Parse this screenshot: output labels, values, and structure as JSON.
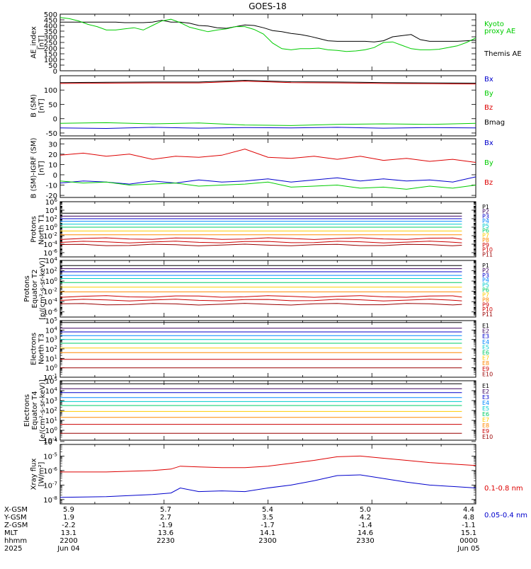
{
  "title": "GOES-18",
  "chart_data": [
    {
      "id": "ae",
      "type": "line",
      "ylabel": [
        "AE_index",
        "[nT]"
      ],
      "ylim": [
        0,
        500
      ],
      "yticks": [
        "0",
        "50",
        "100",
        "150",
        "200",
        "250",
        "300",
        "350",
        "400",
        "450",
        "500"
      ],
      "legend": [
        {
          "text": "Kyoto",
          "color": "#00cc00"
        },
        {
          "text": "proxy AE",
          "color": "#00cc00"
        },
        {
          "text": "Themis AE",
          "color": "#000000"
        }
      ],
      "series": [
        {
          "name": "Themis AE",
          "color": "#000000",
          "x": [
            0,
            20,
            40,
            60,
            80,
            100,
            120,
            140,
            160,
            180,
            200,
            220,
            240,
            260,
            280,
            300,
            320,
            340,
            360,
            380,
            400,
            420,
            440,
            460,
            480,
            500,
            520,
            540,
            560,
            580,
            600,
            620,
            640,
            660,
            680,
            700,
            720,
            740,
            760,
            780,
            800,
            820,
            840,
            860,
            880,
            900
          ],
          "y": [
            430,
            430,
            430,
            430,
            430,
            430,
            430,
            425,
            425,
            425,
            430,
            445,
            430,
            430,
            420,
            400,
            395,
            380,
            375,
            390,
            405,
            400,
            380,
            355,
            345,
            330,
            320,
            305,
            285,
            265,
            260,
            260,
            260,
            260,
            255,
            265,
            300,
            310,
            320,
            275,
            260,
            260,
            260,
            260,
            265,
            270
          ]
        },
        {
          "name": "Kyoto proxy AE",
          "color": "#00cc00",
          "x": [
            0,
            20,
            40,
            60,
            80,
            100,
            120,
            140,
            160,
            180,
            200,
            220,
            240,
            260,
            280,
            300,
            320,
            340,
            360,
            380,
            400,
            420,
            440,
            460,
            480,
            500,
            520,
            540,
            560,
            580,
            600,
            620,
            640,
            660,
            680,
            700,
            720,
            740,
            760,
            780,
            800,
            820,
            840,
            860,
            880,
            900
          ],
          "y": [
            470,
            460,
            440,
            410,
            390,
            360,
            360,
            370,
            380,
            360,
            400,
            440,
            455,
            425,
            385,
            365,
            345,
            360,
            370,
            390,
            390,
            365,
            325,
            245,
            195,
            185,
            195,
            195,
            200,
            185,
            180,
            170,
            175,
            185,
            205,
            250,
            255,
            225,
            195,
            185,
            185,
            190,
            205,
            220,
            250,
            290
          ]
        }
      ]
    },
    {
      "id": "bsm",
      "type": "line",
      "ylabel": [
        "B (SM)",
        "[nT]"
      ],
      "ylim": [
        -60,
        150
      ],
      "ytick_values": [
        -50,
        0,
        50,
        100
      ],
      "yticks": [
        "-50",
        "0",
        "50",
        "100"
      ],
      "legend": [
        {
          "text": "Bx",
          "color": "#0000cc"
        },
        {
          "text": "By",
          "color": "#00cc00"
        },
        {
          "text": "Bz",
          "color": "#dd0000"
        },
        {
          "text": "Bmag",
          "color": "#000000"
        }
      ],
      "series": [
        {
          "name": "Bx",
          "color": "#0000cc",
          "x": [
            0,
            100,
            200,
            300,
            400,
            500,
            600,
            700,
            800,
            900
          ],
          "y": [
            -32,
            -34,
            -30,
            -33,
            -31,
            -32,
            -30,
            -33,
            -31,
            -32
          ]
        },
        {
          "name": "By",
          "color": "#00cc00",
          "x": [
            0,
            100,
            200,
            300,
            400,
            500,
            600,
            700,
            800,
            900
          ],
          "y": [
            -16,
            -14,
            -18,
            -15,
            -22,
            -24,
            -20,
            -18,
            -20,
            -16
          ]
        },
        {
          "name": "Bmag",
          "color": "#000000",
          "x": [
            0,
            100,
            200,
            300,
            400,
            500,
            600,
            700,
            800,
            900
          ],
          "y": [
            126,
            127,
            128,
            128,
            134,
            129,
            128,
            126,
            125,
            124
          ]
        },
        {
          "name": "Bz",
          "color": "#dd0000",
          "x": [
            0,
            100,
            200,
            300,
            400,
            500,
            600,
            700,
            800,
            900
          ],
          "y": [
            123,
            124,
            125,
            125,
            131,
            126,
            125,
            123,
            122,
            121
          ]
        }
      ]
    },
    {
      "id": "bigrf",
      "type": "line",
      "ylabel": [
        "B (SM)-IGRF (SM)",
        "[nT]"
      ],
      "ylim": [
        -22,
        35
      ],
      "ytick_values": [
        -20,
        -10,
        0,
        10,
        20,
        30
      ],
      "yticks": [
        "-20",
        "-10",
        "0",
        "10",
        "20",
        "30"
      ],
      "legend": [
        {
          "text": "Bx",
          "color": "#0000cc"
        },
        {
          "text": "By",
          "color": "#00cc00"
        },
        {
          "text": "Bz",
          "color": "#dd0000"
        }
      ],
      "series": [
        {
          "name": "Bz",
          "color": "#dd0000",
          "x": [
            0,
            50,
            100,
            150,
            200,
            250,
            300,
            350,
            400,
            450,
            500,
            550,
            600,
            650,
            700,
            750,
            800,
            850,
            900
          ],
          "y": [
            19,
            21,
            18,
            20,
            15,
            18,
            17,
            19,
            25,
            17,
            16,
            18,
            15,
            18,
            14,
            16,
            13,
            15,
            12
          ]
        },
        {
          "name": "Bx",
          "color": "#0000cc",
          "x": [
            0,
            50,
            100,
            150,
            200,
            250,
            300,
            350,
            400,
            450,
            500,
            550,
            600,
            650,
            700,
            750,
            800,
            850,
            900
          ],
          "y": [
            -8,
            -6,
            -7,
            -9,
            -6,
            -8,
            -5,
            -7,
            -6,
            -4,
            -7,
            -5,
            -3,
            -6,
            -4,
            -6,
            -5,
            -7,
            -2
          ]
        },
        {
          "name": "By",
          "color": "#00cc00",
          "x": [
            0,
            50,
            100,
            150,
            200,
            250,
            300,
            350,
            400,
            450,
            500,
            550,
            600,
            650,
            700,
            750,
            800,
            850,
            900
          ],
          "y": [
            -6,
            -8,
            -7,
            -10,
            -9,
            -8,
            -11,
            -10,
            -9,
            -7,
            -12,
            -11,
            -10,
            -13,
            -12,
            -14,
            -11,
            -13,
            -10
          ]
        }
      ]
    },
    {
      "id": "pn",
      "type": "line",
      "log": true,
      "ylabel": [
        "Protons",
        "North T1"
      ],
      "ylim_exp": [
        -7,
        6
      ],
      "ytick_exp": [
        -6,
        -4,
        -2,
        0,
        2,
        4,
        6
      ],
      "channels": [
        {
          "label": "P1",
          "color": "#000000",
          "exp": 3.3
        },
        {
          "label": "P2",
          "color": "#3a005f",
          "exp": 2.6
        },
        {
          "label": "P3",
          "color": "#0000cc",
          "exp": 2.0
        },
        {
          "label": "P4",
          "color": "#0088ff",
          "exp": 1.4
        },
        {
          "label": "P5",
          "color": "#00cccc",
          "exp": 0.7
        },
        {
          "label": "P6",
          "color": "#00cc66",
          "exp": 0.0
        },
        {
          "label": "P7",
          "color": "#ffcc00",
          "exp": -0.9
        },
        {
          "label": "P8",
          "color": "#ff8800",
          "exp": -1.8
        },
        {
          "label": "P9",
          "color": "#cc0000",
          "exp": -2.7
        },
        {
          "label": "P10",
          "color": "#cc0000",
          "exp": -3.5
        },
        {
          "label": "P11",
          "color": "#990000",
          "exp": -4.2
        }
      ]
    },
    {
      "id": "pe",
      "type": "line",
      "log": true,
      "ylabel": [
        "Protons",
        "Equator T2",
        "[p/(cm²-s-sr-keV)]"
      ],
      "ylim_exp": [
        -7,
        4
      ],
      "ytick_exp": [
        -6,
        -4,
        -2,
        0,
        2,
        4
      ],
      "channels": [
        {
          "label": "P1",
          "color": "#000000",
          "exp": 3.0
        },
        {
          "label": "P2",
          "color": "#3a005f",
          "exp": 2.4
        },
        {
          "label": "P3",
          "color": "#0000cc",
          "exp": 1.8
        },
        {
          "label": "P4",
          "color": "#0088ff",
          "exp": 1.1
        },
        {
          "label": "P5",
          "color": "#00cccc",
          "exp": 0.5
        },
        {
          "label": "P6",
          "color": "#00cc66",
          "exp": -0.3
        },
        {
          "label": "P7",
          "color": "#ffcc00",
          "exp": -1.2
        },
        {
          "label": "P8",
          "color": "#ff8800",
          "exp": -2.1
        },
        {
          "label": "P9",
          "color": "#cc0000",
          "exp": -3.0
        },
        {
          "label": "P10",
          "color": "#cc0000",
          "exp": -3.7
        },
        {
          "label": "P11",
          "color": "#990000",
          "exp": -4.5
        }
      ]
    },
    {
      "id": "en",
      "type": "line",
      "log": true,
      "ylabel": [
        "Electrons",
        "North T3"
      ],
      "ylim_exp": [
        -1,
        5
      ],
      "ytick_exp": [
        -1,
        0,
        1,
        2,
        3,
        4,
        5
      ],
      "channels": [
        {
          "label": "E1",
          "color": "#000000",
          "exp": 4.8
        },
        {
          "label": "E2",
          "color": "#3a005f",
          "exp": 4.2
        },
        {
          "label": "E3",
          "color": "#0000cc",
          "exp": 3.8
        },
        {
          "label": "E4",
          "color": "#0088ff",
          "exp": 3.4
        },
        {
          "label": "E5",
          "color": "#00cccc",
          "exp": 3.0
        },
        {
          "label": "E6",
          "color": "#00cc66",
          "exp": 2.6
        },
        {
          "label": "E7",
          "color": "#ffcc00",
          "exp": 2.1
        },
        {
          "label": "E8",
          "color": "#ff8800",
          "exp": 1.6
        },
        {
          "label": "E9",
          "color": "#cc0000",
          "exp": 0.9
        },
        {
          "label": "E10",
          "color": "#990000",
          "exp": 0.0
        }
      ]
    },
    {
      "id": "ee",
      "type": "line",
      "log": true,
      "ylabel": [
        "Electrons",
        "Equator T4",
        "[e/(cm²-s-sr-keV)]"
      ],
      "ylim_exp": [
        -1,
        5
      ],
      "ytick_exp": [
        -1,
        0,
        1,
        2,
        3,
        4,
        5
      ],
      "channels": [
        {
          "label": "E1",
          "color": "#000000",
          "exp": 4.7
        },
        {
          "label": "E2",
          "color": "#3a005f",
          "exp": 4.2
        },
        {
          "label": "E3",
          "color": "#0000cc",
          "exp": 3.8
        },
        {
          "label": "E4",
          "color": "#0088ff",
          "exp": 3.3
        },
        {
          "label": "E5",
          "color": "#00cccc",
          "exp": 2.9
        },
        {
          "label": "E6",
          "color": "#00cc66",
          "exp": 2.5
        },
        {
          "label": "E7",
          "color": "#ffcc00",
          "exp": 1.9
        },
        {
          "label": "E8",
          "color": "#ff8800",
          "exp": 1.3
        },
        {
          "label": "E9",
          "color": "#cc0000",
          "exp": 0.6
        },
        {
          "label": "E10",
          "color": "#990000",
          "exp": -0.3
        }
      ]
    },
    {
      "id": "xray",
      "type": "line",
      "log": true,
      "ylabel": [
        "Xray flux",
        "[W/m²]"
      ],
      "ylim_exp": [
        -8.3,
        -4.2
      ],
      "ytick_exp": [
        -8,
        -7,
        -6,
        -5,
        -4
      ],
      "legend": [
        {
          "text": "0.1-0.8 nm",
          "color": "#dd0000"
        },
        {
          "text": "0.05-0.4 nm",
          "color": "#0000cc"
        }
      ],
      "series": [
        {
          "name": "0.1-0.8 nm",
          "color": "#dd0000",
          "x": [
            0,
            100,
            200,
            240,
            260,
            300,
            350,
            400,
            450,
            500,
            550,
            600,
            650,
            700,
            750,
            800,
            850,
            900
          ],
          "y": [
            -6.1,
            -6.1,
            -6.0,
            -5.9,
            -5.7,
            -5.75,
            -5.8,
            -5.8,
            -5.7,
            -5.5,
            -5.3,
            -5.05,
            -5.0,
            -5.15,
            -5.3,
            -5.45,
            -5.55,
            -5.65
          ]
        },
        {
          "name": "0.05-0.4 nm",
          "color": "#0000cc",
          "x": [
            0,
            100,
            200,
            240,
            260,
            300,
            350,
            400,
            450,
            500,
            550,
            600,
            650,
            700,
            750,
            800,
            850,
            900
          ],
          "y": [
            -7.85,
            -7.8,
            -7.65,
            -7.55,
            -7.2,
            -7.45,
            -7.4,
            -7.45,
            -7.2,
            -7.0,
            -6.7,
            -6.35,
            -6.3,
            -6.55,
            -6.8,
            -7.0,
            -7.1,
            -7.2
          ]
        }
      ]
    }
  ],
  "ephemeris": {
    "rows": [
      {
        "label": "X-GSM",
        "values": [
          "5.9",
          "5.7",
          "5.4",
          "5.0",
          "4.4"
        ]
      },
      {
        "label": "Y-GSM",
        "values": [
          "1.9",
          "2.7",
          "3.5",
          "4.2",
          "4.8"
        ]
      },
      {
        "label": "Z-GSM",
        "values": [
          "-2.2",
          "-1.9",
          "-1.7",
          "-1.4",
          "-1.1"
        ]
      },
      {
        "label": "MLT",
        "values": [
          "13.1",
          "13.6",
          "14.1",
          "14.6",
          "15.1"
        ]
      },
      {
        "label": "hhmm",
        "values": [
          "2200",
          "2230",
          "2300",
          "2330",
          "0000"
        ]
      },
      {
        "label": "2025",
        "values": [
          "Jun 04",
          "",
          "",
          "",
          "Jun 05"
        ]
      }
    ]
  }
}
